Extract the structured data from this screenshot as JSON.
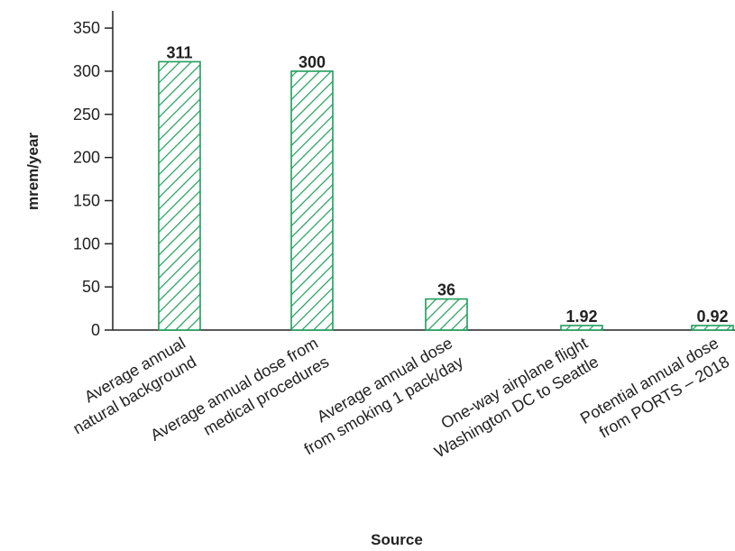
{
  "chart_data": {
    "type": "bar",
    "title": "",
    "xlabel": "Source",
    "ylabel": "mrem/year",
    "ylim": [
      0,
      370
    ],
    "yticks": [
      0,
      50,
      100,
      150,
      200,
      250,
      300,
      350
    ],
    "grid": false,
    "legend": "none",
    "bar_color": "#1e9e5a",
    "bar_pattern": "diagonal-hatch",
    "categories": [
      [
        "Average annual",
        "natural background"
      ],
      [
        "Average annual dose from",
        "medical procedures"
      ],
      [
        "Average annual dose",
        "from smoking 1 pack/day"
      ],
      [
        "One-way airplane flight",
        "Washington DC to Seattle"
      ],
      [
        "Potential annual dose",
        "from PORTS – 2018"
      ]
    ],
    "values": [
      311,
      300,
      36,
      1.92,
      0.92
    ],
    "value_labels": [
      "311",
      "300",
      "36",
      "1.92",
      "0.92"
    ]
  }
}
